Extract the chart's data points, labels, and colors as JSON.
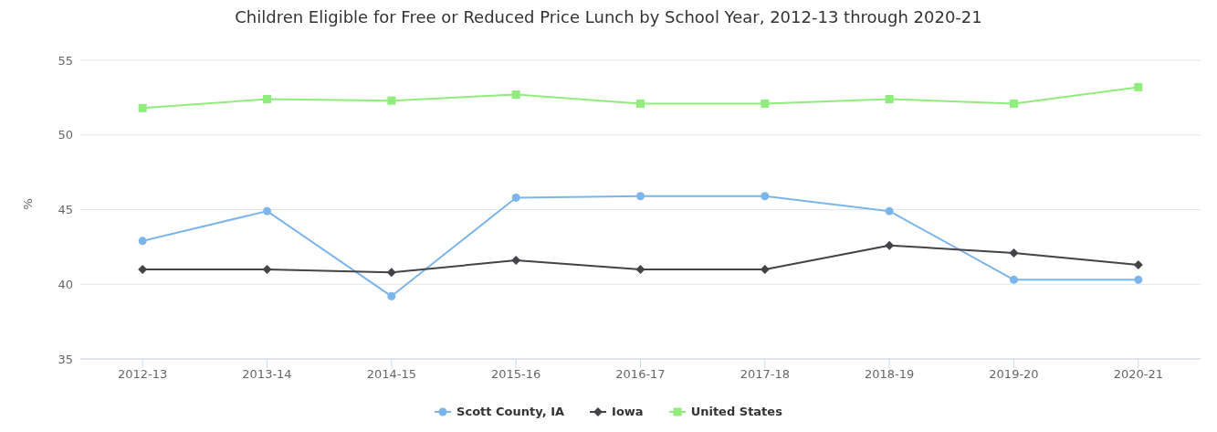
{
  "chart_data": {
    "type": "line",
    "title": "Children Eligible for Free or Reduced Price Lunch by School Year, 2012-13 through 2020-21",
    "ylabel": "%",
    "categories": [
      "2012-13",
      "2013-14",
      "2014-15",
      "2015-16",
      "2016-17",
      "2017-18",
      "2018-19",
      "2019-20",
      "2020-21"
    ],
    "series": [
      {
        "name": "Scott County, IA",
        "color": "#7cb5ec",
        "marker": "circle",
        "values": [
          42.9,
          44.9,
          39.2,
          45.8,
          45.9,
          45.9,
          44.9,
          40.3,
          40.3
        ]
      },
      {
        "name": "Iowa",
        "color": "#434348",
        "marker": "diamond",
        "values": [
          41.0,
          41.0,
          40.8,
          41.6,
          41.0,
          41.0,
          42.6,
          42.1,
          41.3
        ]
      },
      {
        "name": "United States",
        "color": "#90ed7d",
        "marker": "square",
        "values": [
          51.8,
          52.4,
          52.3,
          52.7,
          52.1,
          52.1,
          52.4,
          52.1,
          53.2
        ]
      }
    ],
    "ylim": [
      35,
      55
    ],
    "yticks": [
      35,
      40,
      45,
      50,
      55
    ],
    "grid": "y",
    "legend": "bottom"
  }
}
